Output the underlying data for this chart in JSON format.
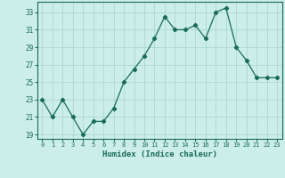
{
  "title": "",
  "xlabel": "Humidex (Indice chaleur)",
  "ylabel": "",
  "x": [
    0,
    1,
    2,
    3,
    4,
    5,
    6,
    7,
    8,
    9,
    10,
    11,
    12,
    13,
    14,
    15,
    16,
    17,
    18,
    19,
    20,
    21,
    22,
    23
  ],
  "y": [
    23,
    21,
    23,
    21,
    19,
    20.5,
    20.5,
    22,
    25,
    26.5,
    28,
    30,
    32.5,
    31,
    31,
    31.5,
    30,
    33,
    33.5,
    29,
    27.5,
    25.5,
    25.5,
    25.5
  ],
  "line_color": "#1a6b5a",
  "marker": "D",
  "marker_size": 2.2,
  "bg_color": "#cceee8",
  "grid_color": "#aad8d0",
  "tick_label_color": "#1a6b5a",
  "axis_label_color": "#1a6b5a",
  "ylim": [
    18.5,
    34.2
  ],
  "yticks": [
    19,
    21,
    23,
    25,
    27,
    29,
    31,
    33
  ],
  "xlim": [
    -0.5,
    23.5
  ]
}
